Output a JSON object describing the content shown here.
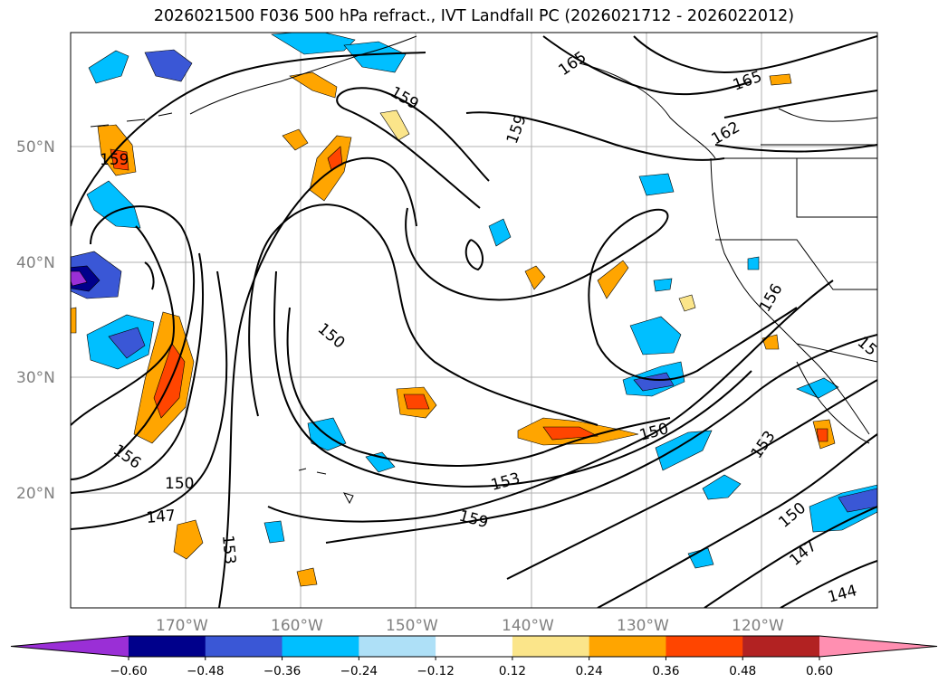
{
  "title": "2026021500 F036 500 hPa refract., IVT Landfall PC (2026021712 - 2026022012)",
  "map": {
    "lat_ticks": [
      "50°N",
      "40°N",
      "30°N",
      "20°N"
    ],
    "lon_ticks": [
      "170°W",
      "160°W",
      "150°W",
      "140°W",
      "130°W",
      "120°W"
    ],
    "contour_labels": [
      "159",
      "165",
      "159",
      "159",
      "162",
      "165",
      "150",
      "156",
      "150",
      "147",
      "153",
      "159",
      "150",
      "153",
      "156",
      "153",
      "150",
      "147",
      "144",
      "15"
    ]
  },
  "colorbar": {
    "ticks": [
      "−0.60",
      "−0.48",
      "−0.36",
      "−0.24",
      "−0.12",
      "0.12",
      "0.24",
      "0.36",
      "0.48",
      "0.60"
    ],
    "colors": [
      "#9a2fd6",
      "#00008b",
      "#3a57d6",
      "#00bfff",
      "#aee0f7",
      "#ffffff",
      "#fbe58a",
      "#ffa500",
      "#ff4500",
      "#b22222",
      "#ff8fb1"
    ]
  }
}
